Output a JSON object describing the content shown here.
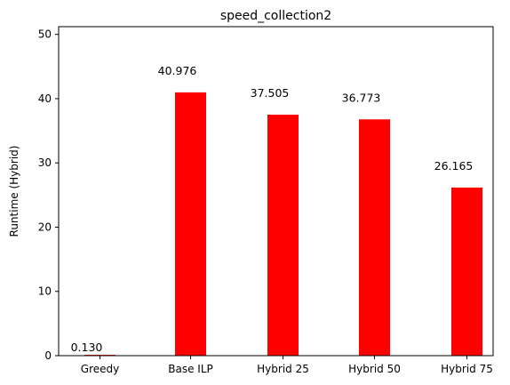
{
  "chart_data": {
    "type": "bar",
    "title": "speed_collection2",
    "xlabel": "",
    "ylabel": "Runtime (Hybrid)",
    "categories": [
      "Greedy",
      "Base ILP",
      "Hybrid 25",
      "Hybrid 50",
      "Hybrid 75"
    ],
    "series": [
      {
        "values": [
          0.13,
          40.976,
          37.505,
          36.773,
          26.165
        ],
        "color": "#ff0000"
      }
    ],
    "data_labels": [
      "0.130",
      "40.976",
      "37.505",
      "36.773",
      "26.165"
    ],
    "ylim": [
      0,
      51.2
    ],
    "yticks": [
      0,
      10,
      20,
      30,
      40,
      50
    ],
    "grid": false,
    "legend": "none"
  }
}
